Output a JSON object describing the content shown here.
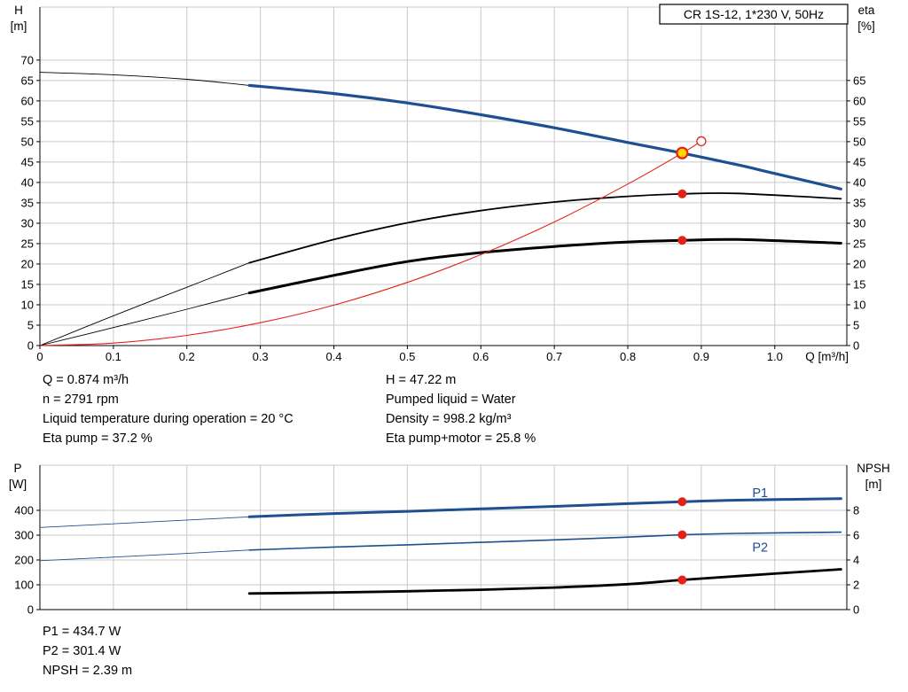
{
  "colors": {
    "blue": "#1d4f91",
    "red": "#e32119",
    "black": "#000000",
    "grid": "#c9c9c9",
    "axis": "#000000",
    "yellow": "#ffd700"
  },
  "info": {
    "left": [
      "Q = 0.874 m³/h",
      "n = 2791 rpm",
      "Liquid temperature during operation = 20 °C",
      "Eta pump = 37.2 %"
    ],
    "right": [
      "H = 47.22 m",
      "Pumped liquid = Water",
      "Density = 998.2 kg/m³",
      "Eta pump+motor = 25.8 %"
    ]
  },
  "footer": [
    "P1 = 434.7 W",
    "P2 = 301.4 W",
    "NPSH = 2.39 m"
  ],
  "chart_data": [
    {
      "type": "line",
      "title": "CR 1S-12, 1*230 V, 50Hz",
      "x_axis": {
        "label": "Q [m³/h]",
        "min": 0,
        "max": 1.098,
        "ticks": [
          [
            0,
            "0"
          ],
          [
            0.1,
            "0.1"
          ],
          [
            0.2,
            "0.2"
          ],
          [
            0.3,
            "0.3"
          ],
          [
            0.4,
            "0.4"
          ],
          [
            0.5,
            "0.5"
          ],
          [
            0.6,
            "0.6"
          ],
          [
            0.7,
            "0.7"
          ],
          [
            0.8,
            "0.8"
          ],
          [
            0.9,
            "0.9"
          ],
          [
            1,
            "1.0"
          ]
        ]
      },
      "y_left": {
        "label": "H",
        "unit": "[m]",
        "min": 0,
        "max": 83,
        "ticks": [
          [
            0,
            "0"
          ],
          [
            5,
            "5"
          ],
          [
            10,
            "10"
          ],
          [
            15,
            "15"
          ],
          [
            20,
            "20"
          ],
          [
            25,
            "25"
          ],
          [
            30,
            "30"
          ],
          [
            35,
            "35"
          ],
          [
            40,
            "40"
          ],
          [
            45,
            "45"
          ],
          [
            50,
            "50"
          ],
          [
            55,
            "55"
          ],
          [
            60,
            "60"
          ],
          [
            65,
            "65"
          ],
          [
            70,
            "70"
          ]
        ]
      },
      "y_right": {
        "label": "eta",
        "unit": "[%]",
        "min": 0,
        "max": 83,
        "ticks": [
          [
            0,
            "0"
          ],
          [
            5,
            "5"
          ],
          [
            10,
            "10"
          ],
          [
            15,
            "15"
          ],
          [
            20,
            "20"
          ],
          [
            25,
            "25"
          ],
          [
            30,
            "30"
          ],
          [
            35,
            "35"
          ],
          [
            40,
            "40"
          ],
          [
            45,
            "45"
          ],
          [
            50,
            "50"
          ],
          [
            55,
            "55"
          ],
          [
            60,
            "60"
          ],
          [
            65,
            "65"
          ]
        ]
      },
      "series": [
        {
          "name": "hq-extension",
          "axis": "left",
          "color": "black",
          "width": 0.9,
          "points": [
            [
              0,
              67
            ],
            [
              0.1,
              66.4
            ],
            [
              0.2,
              65.3
            ],
            [
              0.285,
              63.8
            ]
          ]
        },
        {
          "name": "hq-pump-curve",
          "axis": "left",
          "color": "blue",
          "width": 3.2,
          "points": [
            [
              0.285,
              63.8
            ],
            [
              0.4,
              61.8
            ],
            [
              0.5,
              59.5
            ],
            [
              0.6,
              56.6
            ],
            [
              0.7,
              53.4
            ],
            [
              0.8,
              49.8
            ],
            [
              0.874,
              47.2
            ],
            [
              0.95,
              44.3
            ],
            [
              1.0,
              42.2
            ],
            [
              1.09,
              38.4
            ]
          ]
        },
        {
          "name": "eta-pump-extension",
          "axis": "right",
          "color": "black",
          "width": 0.9,
          "points": [
            [
              0,
              0
            ],
            [
              0.1,
              7.3
            ],
            [
              0.2,
              14.3
            ],
            [
              0.285,
              20.3
            ]
          ]
        },
        {
          "name": "eta-pump-curve",
          "axis": "right",
          "color": "black",
          "width": 1.8,
          "points": [
            [
              0.285,
              20.3
            ],
            [
              0.4,
              26
            ],
            [
              0.5,
              30.1
            ],
            [
              0.6,
              33.1
            ],
            [
              0.7,
              35.2
            ],
            [
              0.8,
              36.6
            ],
            [
              0.874,
              37.2
            ],
            [
              0.95,
              37.3
            ],
            [
              1.09,
              36
            ]
          ]
        },
        {
          "name": "eta-pump-motor-extension",
          "axis": "right",
          "color": "black",
          "width": 0.9,
          "points": [
            [
              0,
              0
            ],
            [
              0.1,
              4.4
            ],
            [
              0.2,
              8.9
            ],
            [
              0.285,
              12.9
            ]
          ]
        },
        {
          "name": "eta-pump-motor-curve",
          "axis": "right",
          "color": "black",
          "width": 3,
          "points": [
            [
              0.285,
              12.9
            ],
            [
              0.4,
              17.2
            ],
            [
              0.5,
              20.6
            ],
            [
              0.6,
              22.8
            ],
            [
              0.7,
              24.3
            ],
            [
              0.8,
              25.4
            ],
            [
              0.874,
              25.8
            ],
            [
              0.95,
              26
            ],
            [
              1.09,
              25.1
            ]
          ]
        },
        {
          "name": "system-curve",
          "axis": "left",
          "color": "red",
          "width": 1.1,
          "points": [
            [
              0,
              0
            ],
            [
              0.1,
              0.6
            ],
            [
              0.2,
              2.5
            ],
            [
              0.3,
              5.6
            ],
            [
              0.4,
              9.9
            ],
            [
              0.5,
              15.5
            ],
            [
              0.6,
              22.3
            ],
            [
              0.7,
              30.3
            ],
            [
              0.8,
              39.6
            ],
            [
              0.874,
              47.2
            ],
            [
              0.9,
              50.1
            ]
          ]
        }
      ],
      "markers": [
        {
          "name": "duty-point",
          "type": "duty",
          "axis": "left",
          "x": 0.874,
          "y": 47.22
        },
        {
          "name": "system-end-point",
          "type": "open",
          "axis": "left",
          "x": 0.9,
          "y": 50.1
        },
        {
          "name": "eta-pump-duty-point",
          "type": "dot",
          "axis": "right",
          "x": 0.874,
          "y": 37.2
        },
        {
          "name": "eta-pump-motor-duty-point",
          "type": "dot",
          "axis": "right",
          "x": 0.874,
          "y": 25.8
        }
      ],
      "annotations": []
    },
    {
      "type": "line",
      "title": "",
      "x_axis": {
        "label": "",
        "min": 0,
        "max": 1.098,
        "ticks": [
          [
            0,
            ""
          ],
          [
            0.1,
            ""
          ],
          [
            0.2,
            ""
          ],
          [
            0.3,
            ""
          ],
          [
            0.4,
            ""
          ],
          [
            0.5,
            ""
          ],
          [
            0.6,
            ""
          ],
          [
            0.7,
            ""
          ],
          [
            0.8,
            ""
          ],
          [
            0.9,
            ""
          ],
          [
            1,
            ""
          ]
        ]
      },
      "y_left": {
        "label": "P",
        "unit": "[W]",
        "min": 0,
        "max": 582,
        "ticks": [
          [
            0,
            "0"
          ],
          [
            100,
            "100"
          ],
          [
            200,
            "200"
          ],
          [
            300,
            "300"
          ],
          [
            400,
            "400"
          ]
        ]
      },
      "y_right": {
        "label": "NPSH",
        "unit": "[m]",
        "min": 0,
        "max": 11.64,
        "ticks": [
          [
            0,
            "0"
          ],
          [
            2,
            "2"
          ],
          [
            4,
            "4"
          ],
          [
            6,
            "6"
          ],
          [
            8,
            "8"
          ]
        ]
      },
      "series": [
        {
          "name": "p1-extension",
          "axis": "left",
          "color": "blue",
          "width": 0.9,
          "points": [
            [
              0,
              331
            ],
            [
              0.15,
              353
            ],
            [
              0.285,
              374
            ]
          ]
        },
        {
          "name": "p1-curve",
          "axis": "left",
          "color": "blue",
          "width": 3,
          "points": [
            [
              0.285,
              374
            ],
            [
              0.4,
              387
            ],
            [
              0.5,
              396
            ],
            [
              0.6,
              406
            ],
            [
              0.7,
              416
            ],
            [
              0.8,
              427
            ],
            [
              0.874,
              434.7
            ],
            [
              0.95,
              441
            ],
            [
              1.09,
              447
            ]
          ]
        },
        {
          "name": "p2-extension",
          "axis": "left",
          "color": "blue",
          "width": 0.9,
          "points": [
            [
              0,
              197
            ],
            [
              0.15,
              219
            ],
            [
              0.285,
              240
            ]
          ]
        },
        {
          "name": "p2-curve",
          "axis": "left",
          "color": "blue",
          "width": 1.6,
          "points": [
            [
              0.285,
              240
            ],
            [
              0.4,
              252
            ],
            [
              0.5,
              261
            ],
            [
              0.6,
              271
            ],
            [
              0.7,
              281
            ],
            [
              0.8,
              292
            ],
            [
              0.874,
              301.4
            ],
            [
              0.95,
              307
            ],
            [
              1.09,
              312
            ]
          ]
        },
        {
          "name": "npsh-curve",
          "axis": "right",
          "color": "black",
          "width": 2.8,
          "points": [
            [
              0.285,
              1.3
            ],
            [
              0.4,
              1.38
            ],
            [
              0.5,
              1.48
            ],
            [
              0.6,
              1.6
            ],
            [
              0.7,
              1.78
            ],
            [
              0.8,
              2.05
            ],
            [
              0.874,
              2.39
            ],
            [
              0.95,
              2.7
            ],
            [
              1,
              2.9
            ],
            [
              1.09,
              3.25
            ]
          ]
        }
      ],
      "markers": [
        {
          "name": "p1-duty-point",
          "type": "dot",
          "axis": "left",
          "x": 0.874,
          "y": 434.7
        },
        {
          "name": "p2-duty-point",
          "type": "dot",
          "axis": "left",
          "x": 0.874,
          "y": 301.4
        },
        {
          "name": "npsh-duty-point",
          "type": "dot",
          "axis": "right",
          "x": 0.874,
          "y": 2.39
        }
      ],
      "annotations": [
        {
          "text": "P1",
          "x": 0.98,
          "y": 472,
          "axis": "left",
          "color": "blue"
        },
        {
          "text": "P2",
          "x": 0.98,
          "y": 252,
          "axis": "left",
          "color": "blue"
        }
      ]
    }
  ]
}
